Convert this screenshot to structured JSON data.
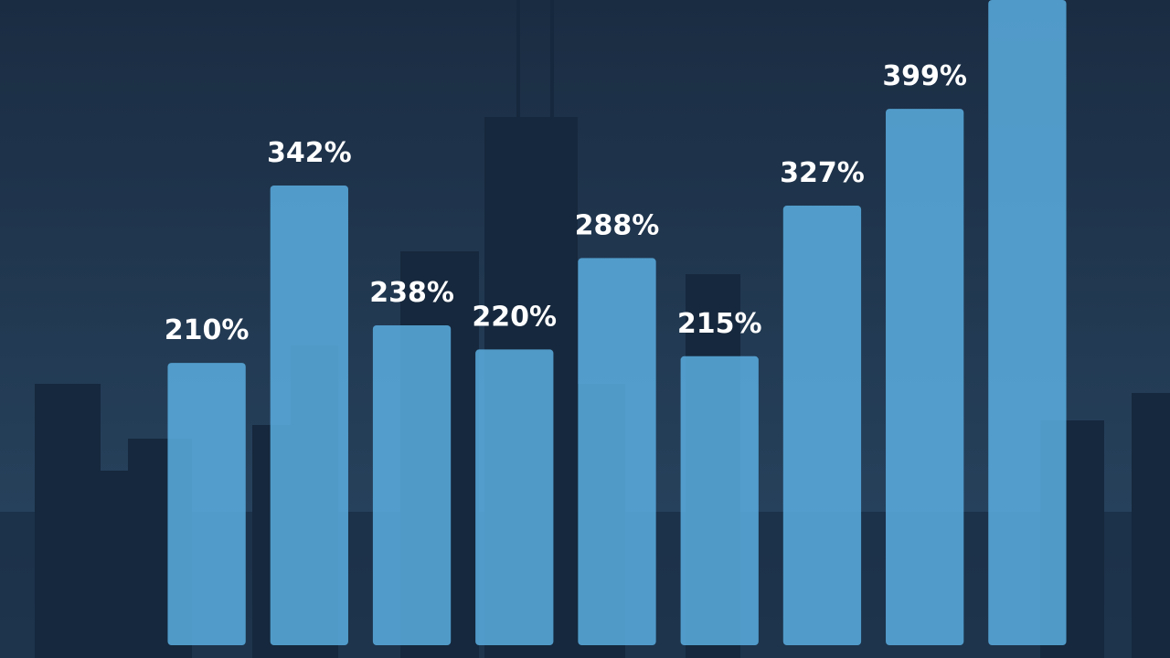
{
  "chart_data": {
    "type": "bar",
    "categories": [
      null,
      null,
      null,
      null,
      null,
      null,
      null,
      null,
      null
    ],
    "values": [
      210,
      342,
      238,
      220,
      288,
      215,
      327,
      399,
      480
    ],
    "value_labels": [
      "210%",
      "342%",
      "238%",
      "220%",
      "288%",
      "215%",
      "327%",
      "399%",
      null
    ],
    "color": "#5aaee0",
    "ylim": [
      0,
      480
    ]
  }
}
